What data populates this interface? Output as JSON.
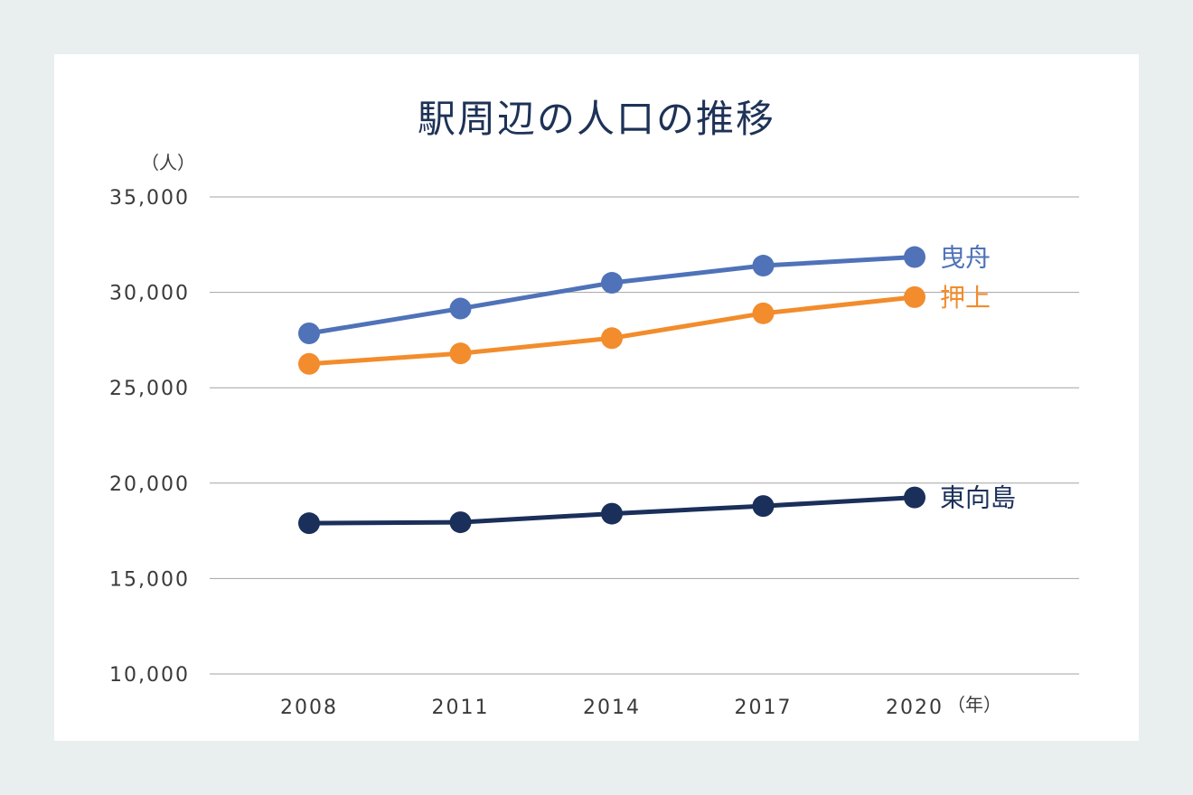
{
  "chart_data": {
    "type": "line",
    "title": "駅周辺の人口の推移",
    "y_unit": "（人）",
    "x_unit": "（年）",
    "x": [
      "2008",
      "2011",
      "2014",
      "2017",
      "2020"
    ],
    "ylim": [
      10000,
      35000
    ],
    "yticks": [
      10000,
      15000,
      20000,
      25000,
      30000,
      35000
    ],
    "ytick_labels": [
      "10,000",
      "15,000",
      "20,000",
      "25,000",
      "30,000",
      "35,000"
    ],
    "grid": true,
    "legend": "inline-right",
    "series": [
      {
        "name": "曳舟",
        "color": "#4f72b8",
        "values": [
          27850,
          29150,
          30500,
          31400,
          31850
        ]
      },
      {
        "name": "押上",
        "color": "#f28c2c",
        "values": [
          26250,
          26800,
          27600,
          28900,
          29750
        ]
      },
      {
        "name": "東向島",
        "color": "#1a2f5a",
        "values": [
          17900,
          17950,
          18400,
          18800,
          19250
        ]
      }
    ]
  }
}
